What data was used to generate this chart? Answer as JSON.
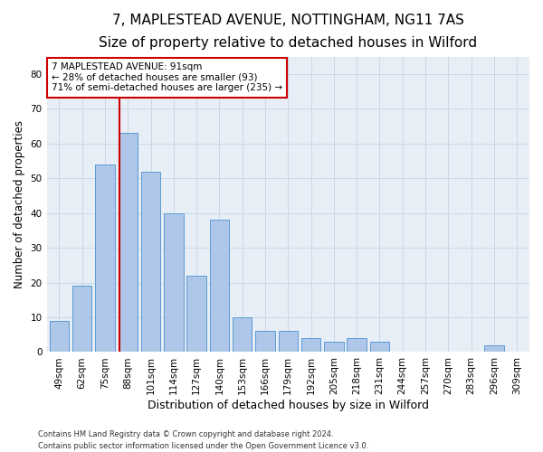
{
  "title": "7, MAPLESTEAD AVENUE, NOTTINGHAM, NG11 7AS",
  "subtitle": "Size of property relative to detached houses in Wilford",
  "xlabel": "Distribution of detached houses by size in Wilford",
  "ylabel": "Number of detached properties",
  "footer_line1": "Contains HM Land Registry data © Crown copyright and database right 2024.",
  "footer_line2": "Contains public sector information licensed under the Open Government Licence v3.0.",
  "categories": [
    "49sqm",
    "62sqm",
    "75sqm",
    "88sqm",
    "101sqm",
    "114sqm",
    "127sqm",
    "140sqm",
    "153sqm",
    "166sqm",
    "179sqm",
    "192sqm",
    "205sqm",
    "218sqm",
    "231sqm",
    "244sqm",
    "257sqm",
    "270sqm",
    "283sqm",
    "296sqm",
    "309sqm"
  ],
  "values": [
    9,
    19,
    54,
    63,
    52,
    40,
    22,
    38,
    10,
    6,
    6,
    4,
    3,
    4,
    3,
    0,
    0,
    0,
    0,
    2,
    0
  ],
  "bar_color": "#aec6e8",
  "bar_edge_color": "#5b9bd5",
  "red_line_index": 3,
  "red_line_color": "#cc0000",
  "annotation_line1": "7 MAPLESTEAD AVENUE: 91sqm",
  "annotation_line2": "← 28% of detached houses are smaller (93)",
  "annotation_line3": "71% of semi-detached houses are larger (235) →",
  "annotation_box_color": "#ffffff",
  "annotation_box_edge": "#cc0000",
  "ylim": [
    0,
    85
  ],
  "yticks": [
    0,
    10,
    20,
    30,
    40,
    50,
    60,
    70,
    80
  ],
  "grid_color": "#c8d8ea",
  "background_color": "#e8eef6",
  "title_fontsize": 11,
  "subtitle_fontsize": 9.5,
  "xlabel_fontsize": 9,
  "ylabel_fontsize": 8.5,
  "tick_fontsize": 7.5,
  "ann_fontsize": 7.5
}
